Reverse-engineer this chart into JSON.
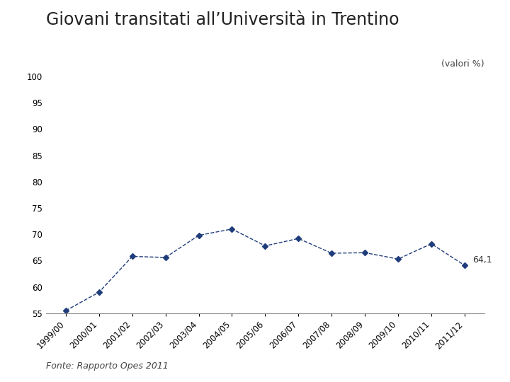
{
  "title": "Giovani transitati all’Università in Trentino",
  "subtitle": "(valori %)",
  "source": "Fonte: Rapporto Opes 2011",
  "categories": [
    "1999/00",
    "2000/01",
    "2001/02",
    "2002/03",
    "2003/04",
    "2004/05",
    "2005/06",
    "2006/07",
    "2007/08",
    "2008/09",
    "2009/10",
    "2010/11",
    "2011/12"
  ],
  "values": [
    55.5,
    59.0,
    65.8,
    65.6,
    69.8,
    71.0,
    67.8,
    69.2,
    66.4,
    66.5,
    65.3,
    68.2,
    64.1
  ],
  "line_color": "#1F3D7A",
  "marker": "D",
  "marker_size": 4,
  "ylim": [
    55,
    100
  ],
  "yticks": [
    55,
    60,
    65,
    70,
    75,
    80,
    85,
    90,
    95,
    100
  ],
  "annotation_index": 12,
  "annotation_text": "64,1",
  "title_fontsize": 17,
  "subtitle_fontsize": 9,
  "source_fontsize": 9,
  "tick_fontsize": 8.5,
  "background_color": "#ffffff"
}
